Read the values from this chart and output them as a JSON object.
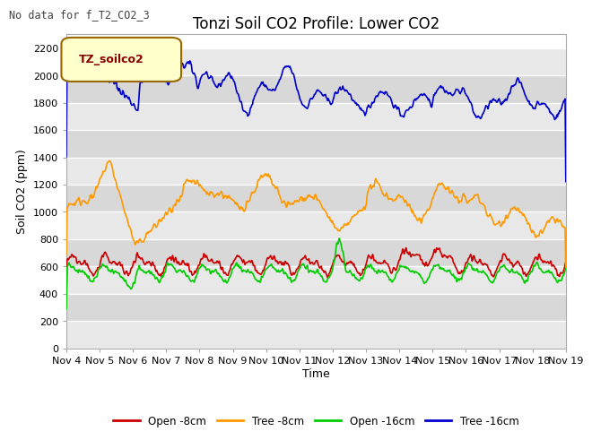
{
  "title": "Tonzi Soil CO2 Profile: Lower CO2",
  "no_data_text": "No data for f_T2_CO2_3",
  "ylabel": "Soil CO2 (ppm)",
  "xlabel": "Time",
  "legend_label": "TZ_soilco2",
  "ylim": [
    0,
    2300
  ],
  "yticks": [
    0,
    200,
    400,
    600,
    800,
    1000,
    1200,
    1400,
    1600,
    1800,
    2000,
    2200
  ],
  "xtick_labels": [
    "Nov 4",
    "Nov 5",
    "Nov 6",
    "Nov 7",
    "Nov 8",
    "Nov 9",
    "Nov 10",
    "Nov 11",
    "Nov 12",
    "Nov 13",
    "Nov 14",
    "Nov 15",
    "Nov 16",
    "Nov 17",
    "Nov 18",
    "Nov 19"
  ],
  "legend_entries": [
    {
      "label": "Open -8cm",
      "color": "#cc0000"
    },
    {
      "label": "Tree -8cm",
      "color": "#ff9900"
    },
    {
      "label": "Open -16cm",
      "color": "#00cc00"
    },
    {
      "label": "Tree -16cm",
      "color": "#0000cc"
    }
  ],
  "fig_bg": "#ffffff",
  "plot_bg_light": "#f0f0f0",
  "plot_bg_dark": "#e0e0e0",
  "grid_color": "#ffffff",
  "title_fontsize": 12,
  "axis_fontsize": 9,
  "tick_fontsize": 8,
  "band_colors": [
    "#e8e8e8",
    "#d8d8d8"
  ]
}
